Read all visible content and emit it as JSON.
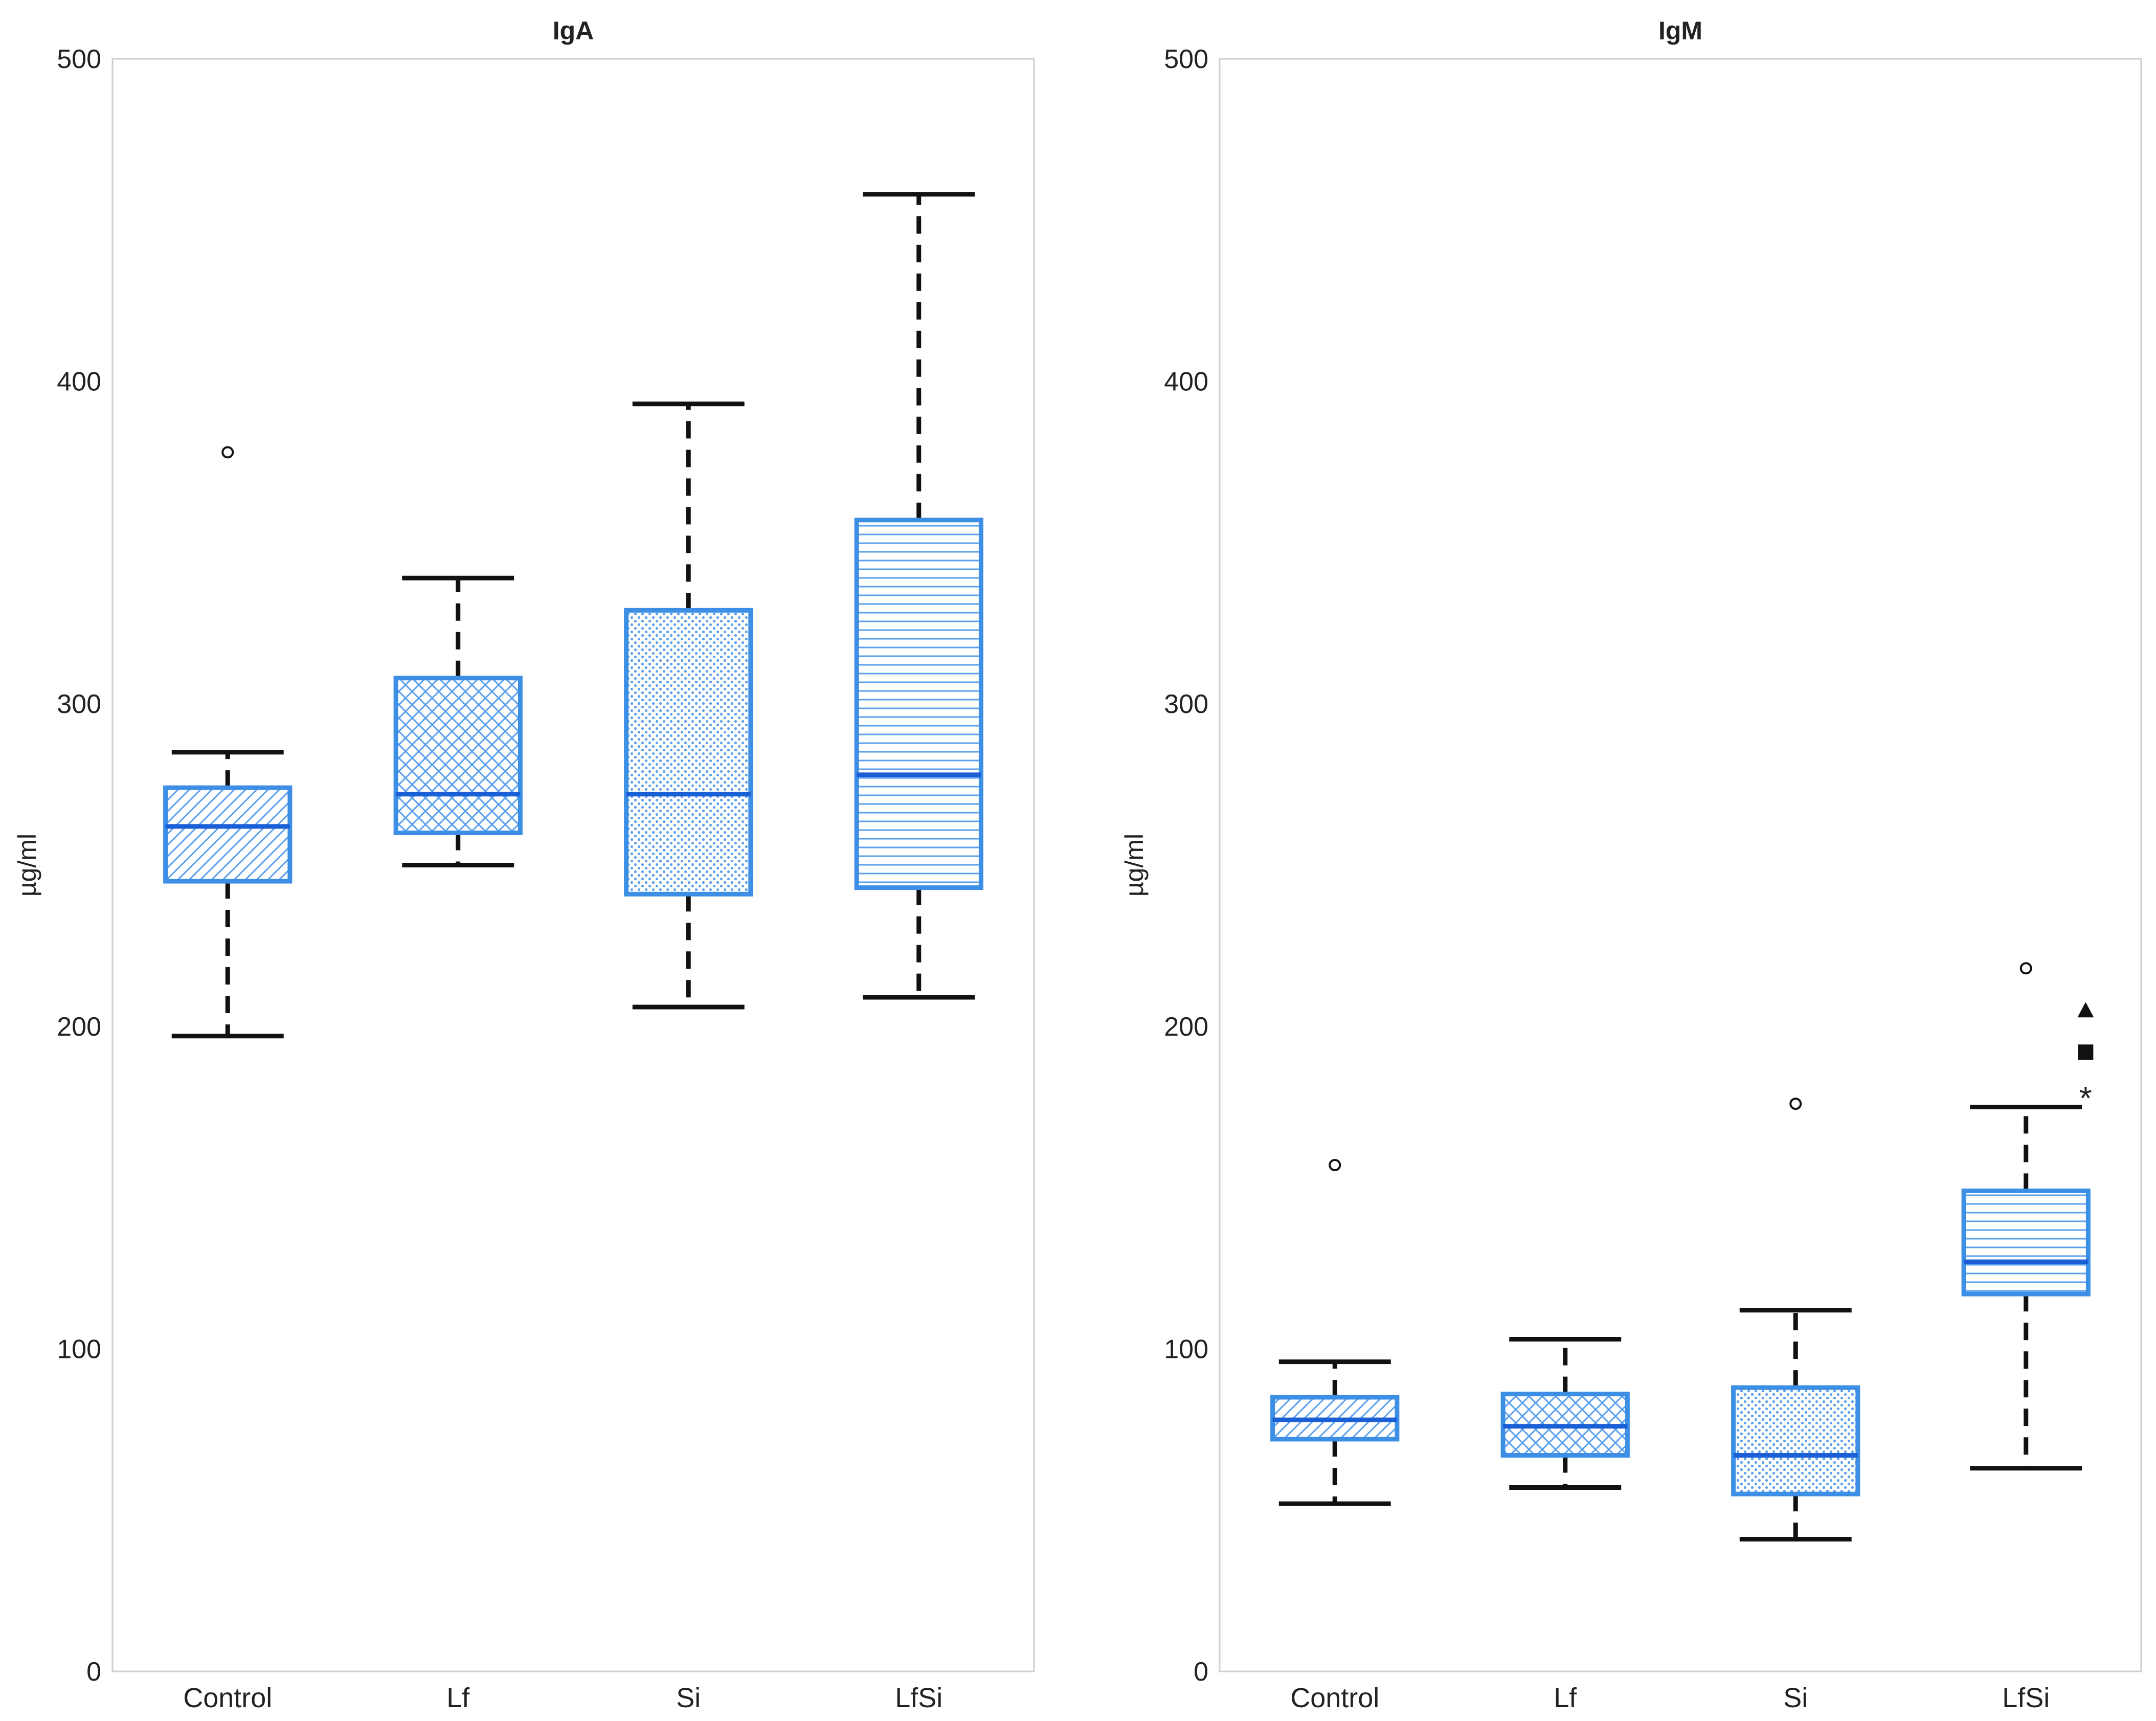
{
  "colors": {
    "box_stroke": "#3d8fe6",
    "median": "#1a5fd6",
    "hatch": "#5aa0ee",
    "whisker": "#111111",
    "axis_frame": "#cfcfcf",
    "marker": "#111111"
  },
  "chart_data": [
    {
      "type": "box",
      "title": "IgA",
      "xlabel": "",
      "ylabel": "µg/ml",
      "ylim": [
        0,
        500
      ],
      "yticks": [
        0,
        100,
        200,
        300,
        400,
        500
      ],
      "grid": false,
      "categories": [
        "Control",
        "Lf",
        "Si",
        "LfSi"
      ],
      "boxes": [
        {
          "category": "Control",
          "hatch": "diagonal",
          "whisker_low": 197,
          "q1": 245,
          "median": 262,
          "q3": 274,
          "whisker_high": 285,
          "outliers": [
            378
          ]
        },
        {
          "category": "Lf",
          "hatch": "crosshatch",
          "whisker_low": 250,
          "q1": 260,
          "median": 272,
          "q3": 308,
          "whisker_high": 339,
          "outliers": []
        },
        {
          "category": "Si",
          "hatch": "dots",
          "whisker_low": 206,
          "q1": 241,
          "median": 272,
          "q3": 329,
          "whisker_high": 393,
          "outliers": []
        },
        {
          "category": "LfSi",
          "hatch": "horizontal",
          "whisker_low": 209,
          "q1": 243,
          "median": 278,
          "q3": 357,
          "whisker_high": 458,
          "outliers": []
        }
      ],
      "annotations": []
    },
    {
      "type": "box",
      "title": "IgM",
      "xlabel": "",
      "ylabel": "µg/ml",
      "ylim": [
        0,
        500
      ],
      "yticks": [
        0,
        100,
        200,
        300,
        400,
        500
      ],
      "grid": false,
      "categories": [
        "Control",
        "Lf",
        "Si",
        "LfSi"
      ],
      "boxes": [
        {
          "category": "Control",
          "hatch": "diagonal",
          "whisker_low": 52,
          "q1": 72,
          "median": 78,
          "q3": 85,
          "whisker_high": 96,
          "outliers": [
            157
          ]
        },
        {
          "category": "Lf",
          "hatch": "crosshatch",
          "whisker_low": 57,
          "q1": 67,
          "median": 76,
          "q3": 86,
          "whisker_high": 103,
          "outliers": []
        },
        {
          "category": "Si",
          "hatch": "dots",
          "whisker_low": 41,
          "q1": 55,
          "median": 67,
          "q3": 88,
          "whisker_high": 112,
          "outliers": [
            176
          ]
        },
        {
          "category": "LfSi",
          "hatch": "horizontal",
          "whisker_low": 63,
          "q1": 117,
          "median": 127,
          "q3": 149,
          "whisker_high": 175,
          "outliers": [
            218
          ]
        }
      ],
      "annotations": [
        {
          "category": "LfSi",
          "symbol": "triangle",
          "value": 205
        },
        {
          "category": "LfSi",
          "symbol": "square",
          "value": 192
        },
        {
          "category": "LfSi",
          "symbol": "asterisk",
          "value": 180
        }
      ]
    }
  ]
}
